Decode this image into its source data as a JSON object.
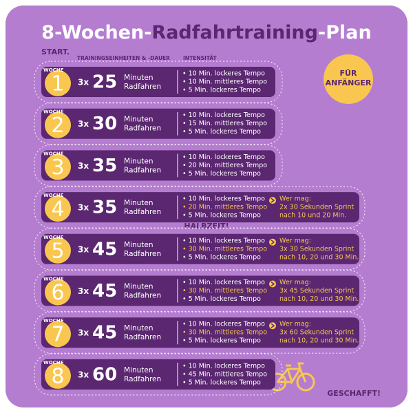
{
  "title": {
    "part1": "8-Wochen-",
    "part2": "Radfahrtraining",
    "part3": "-Plan"
  },
  "start": "START.",
  "column_headers": [
    "TRAININGSEINHEITEN & -DAUER",
    "INTENSITÄT"
  ],
  "badge": [
    "FÜR",
    "ANFÄNGER"
  ],
  "halftime": "HALBZEIT!",
  "finish": "GESCHAFFT!",
  "weeks": [
    {
      "label": "WOCHE",
      "number": 1,
      "sessions": "3x",
      "minutes": 25,
      "unit": [
        "Minuten",
        "Radfahren"
      ],
      "intensity": [
        "• 10 Min. lockeres Tempo",
        "• 10 Min. mittleres Tempo",
        "• 5 Min. lockeres Tempo"
      ]
    },
    {
      "label": "WOCHE",
      "number": 2,
      "sessions": "3x",
      "minutes": 30,
      "unit": [
        "Minuten",
        "Radfahren"
      ],
      "intensity": [
        "• 10 Min. lockeres Tempo",
        "• 15 Min. mittleres Tempo",
        "• 5 Min. lockeres Tempo"
      ]
    },
    {
      "label": "WOCHE",
      "number": 3,
      "sessions": "3x",
      "minutes": 35,
      "unit": [
        "Minuten",
        "Radfahren"
      ],
      "intensity": [
        "• 10 Min. lockeres Tempo",
        "• 20 Min. mittleres Tempo",
        "• 5 Min. lockeres Tempo"
      ]
    },
    {
      "label": "WOCHE",
      "number": 4,
      "sessions": "3x",
      "minutes": 35,
      "unit": [
        "Minuten",
        "Radfahren"
      ],
      "intensity": [
        "• 10 Min. lockeres Tempo",
        "• 20 Min. mittleres Tempo",
        "• 5 Min. lockeres Tempo"
      ],
      "extra": [
        "Wer mag:",
        "2x 30 Sekunden Sprint",
        "nach 10 und 20 Min."
      ]
    },
    {
      "label": "WOCHE",
      "number": 5,
      "sessions": "3x",
      "minutes": 45,
      "unit": [
        "Minuten",
        "Radfahren"
      ],
      "intensity": [
        "• 10 Min. lockeres Tempo",
        "• 30 Min. mittleres Tempo",
        "• 5 Min. lockeres Tempo"
      ],
      "extra": [
        "Wer mag:",
        "3x 30 Sekunden Sprint",
        "nach 10, 20 und 30 Min."
      ]
    },
    {
      "label": "WOCHE",
      "number": 6,
      "sessions": "3x",
      "minutes": 45,
      "unit": [
        "Minuten",
        "Radfahren"
      ],
      "intensity": [
        "• 10 Min. lockeres Tempo",
        "• 30 Min. mittleres Tempo",
        "• 5 Min. lockeres Tempo"
      ],
      "extra": [
        "Wer mag:",
        "3x 45 Sekunden Sprint",
        "nach 10, 20 und 30 Min."
      ]
    },
    {
      "label": "WOCHE",
      "number": 7,
      "sessions": "3x",
      "minutes": 45,
      "unit": [
        "Minuten",
        "Radfahren"
      ],
      "intensity": [
        "• 10 Min. lockeres Tempo",
        "• 30 Min. mittleres Tempo",
        "• 5 Min. lockeres Tempo"
      ],
      "extra": [
        "Wer mag:",
        "3x 60 Sekunden Sprint",
        "nach 10, 20 und 30 Min."
      ]
    },
    {
      "label": "WOCHE",
      "number": 8,
      "sessions": "3x",
      "minutes": 60,
      "unit": [
        "Minuten",
        "Radfahren"
      ],
      "intensity": [
        "• 10 Min. lockeres Tempo",
        "• 45 Min. mittleres Tempo",
        "• 5 Min. lockeres Tempo"
      ]
    }
  ]
}
